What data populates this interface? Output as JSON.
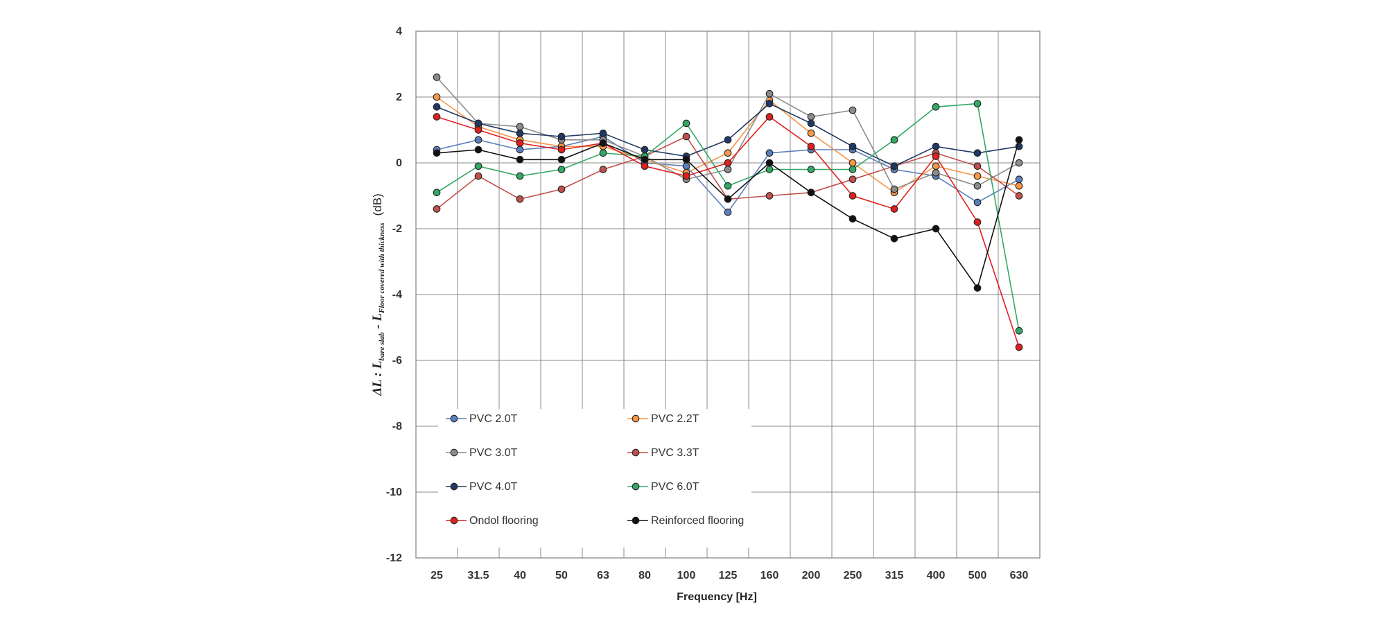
{
  "chart_data": {
    "type": "line",
    "title": "",
    "xlabel": "Frequency [Hz]",
    "ylabel": {
      "prefix": "ΔL : L",
      "sub1": "bare slab",
      "mid": " - L",
      "sub2": "Floor covered with thickness",
      "unit": "(dB)"
    },
    "categories": [
      "25",
      "31.5",
      "40",
      "50",
      "63",
      "80",
      "100",
      "125",
      "160",
      "200",
      "250",
      "315",
      "400",
      "500",
      "630"
    ],
    "ylim": [
      -12,
      4
    ],
    "yticks": [
      4,
      2,
      0,
      -2,
      -4,
      -6,
      -8,
      -10,
      -12
    ],
    "grid": true,
    "legend_position": "bottom-left",
    "series": [
      {
        "name": "PVC 2.0T",
        "color": "#5b7fbc",
        "values": [
          0.4,
          0.7,
          0.4,
          0.5,
          0.8,
          0.0,
          -0.1,
          -1.5,
          0.3,
          0.4,
          0.4,
          -0.2,
          -0.4,
          -1.2,
          -0.5
        ]
      },
      {
        "name": "PVC 2.2T",
        "color": "#f79646",
        "values": [
          2.0,
          1.1,
          0.7,
          0.5,
          0.5,
          0.1,
          -0.3,
          0.3,
          1.9,
          0.9,
          0.0,
          -0.9,
          -0.1,
          -0.4,
          -0.7
        ]
      },
      {
        "name": "PVC 3.0T",
        "color": "#8c8c8c",
        "values": [
          2.6,
          1.2,
          1.1,
          0.7,
          0.7,
          0.2,
          -0.5,
          -0.2,
          2.1,
          1.4,
          1.6,
          -0.8,
          -0.3,
          -0.7,
          0.0
        ]
      },
      {
        "name": "PVC 3.3T",
        "color": "#c0504d",
        "values": [
          -1.4,
          -0.4,
          -1.1,
          -0.8,
          -0.2,
          0.2,
          0.8,
          -1.1,
          -1.0,
          -0.9,
          -0.5,
          -0.1,
          0.3,
          -0.1,
          -1.0
        ]
      },
      {
        "name": "PVC 4.0T",
        "color": "#1f3864",
        "values": [
          1.7,
          1.2,
          0.9,
          0.8,
          0.9,
          0.4,
          0.2,
          0.7,
          1.8,
          1.2,
          0.5,
          -0.1,
          0.5,
          0.3,
          0.5
        ]
      },
      {
        "name": "PVC 6.0T",
        "color": "#33a865",
        "values": [
          -0.9,
          -0.1,
          -0.4,
          -0.2,
          0.3,
          0.2,
          1.2,
          -0.7,
          -0.2,
          -0.2,
          -0.2,
          0.7,
          1.7,
          1.8,
          -5.1
        ]
      },
      {
        "name": "Ondol flooring",
        "color": "#e0201e",
        "values": [
          1.4,
          1.0,
          0.6,
          0.4,
          0.6,
          -0.1,
          -0.4,
          0.0,
          1.4,
          0.5,
          -1.0,
          -1.4,
          0.2,
          -1.8,
          -5.6
        ]
      },
      {
        "name": "Reinforced flooring",
        "color": "#111111",
        "values": [
          0.3,
          0.4,
          0.1,
          0.1,
          0.6,
          0.1,
          0.1,
          -1.1,
          0.0,
          -0.9,
          -1.7,
          -2.3,
          -2.0,
          -3.8,
          0.7
        ]
      }
    ]
  }
}
